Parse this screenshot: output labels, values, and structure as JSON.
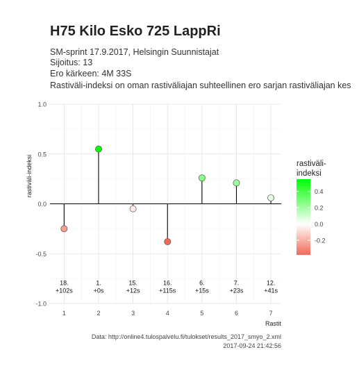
{
  "header": {
    "title": "H75 Kilo Esko 725 LappRi",
    "subtitle_1": "SM-sprint 17.9.2017, Helsingin Suunnistajat",
    "subtitle_2": "Sijoitus: 13",
    "subtitle_3": "Ero kärkeen: 4M 33S",
    "subtitle_4": "Rastiväli-indeksi on oman rastiväliajan suhteellinen ero sarjan rastiväliajan kes"
  },
  "caption": {
    "source": "Data: http://online4.tulospalvelu.fi/tulokset/results_2017_smyo_2.xml",
    "timestamp": "2017-09-24 21:42:56"
  },
  "chart_data": {
    "type": "scatter",
    "style": "lollipop",
    "xlabel": "Rastit",
    "ylabel": "rastiväli-indeksi",
    "xlim": [
      0.55,
      7.3
    ],
    "ylim": [
      -1.0,
      1.0
    ],
    "x_ticks": [
      "1",
      "2",
      "3",
      "4",
      "5",
      "6",
      "7"
    ],
    "y_ticks": [
      "-1.0",
      "-0.5",
      "0.0",
      "0.5",
      "1.0"
    ],
    "grid": true,
    "points": [
      {
        "x": 1,
        "y": -0.25,
        "rank": "18.",
        "diff": "+102s"
      },
      {
        "x": 2,
        "y": 0.55,
        "rank": "1.",
        "diff": "+0s"
      },
      {
        "x": 3,
        "y": -0.05,
        "rank": "15.",
        "diff": "+12s"
      },
      {
        "x": 4,
        "y": -0.38,
        "rank": "16.",
        "diff": "+115s"
      },
      {
        "x": 5,
        "y": 0.26,
        "rank": "6.",
        "diff": "+15s"
      },
      {
        "x": 6,
        "y": 0.21,
        "rank": "7.",
        "diff": "+23s"
      },
      {
        "x": 7,
        "y": 0.06,
        "rank": "12.",
        "diff": "+41s"
      }
    ],
    "legend": {
      "title_1": "rastiväli-",
      "title_2": "indeksi",
      "ticks": [
        "0.4",
        "0.2",
        "0.0",
        "-0.2"
      ],
      "position": "right"
    },
    "colors": {
      "high": "#00ff00",
      "mid": "#ffffff",
      "low": "#f26a56"
    }
  }
}
